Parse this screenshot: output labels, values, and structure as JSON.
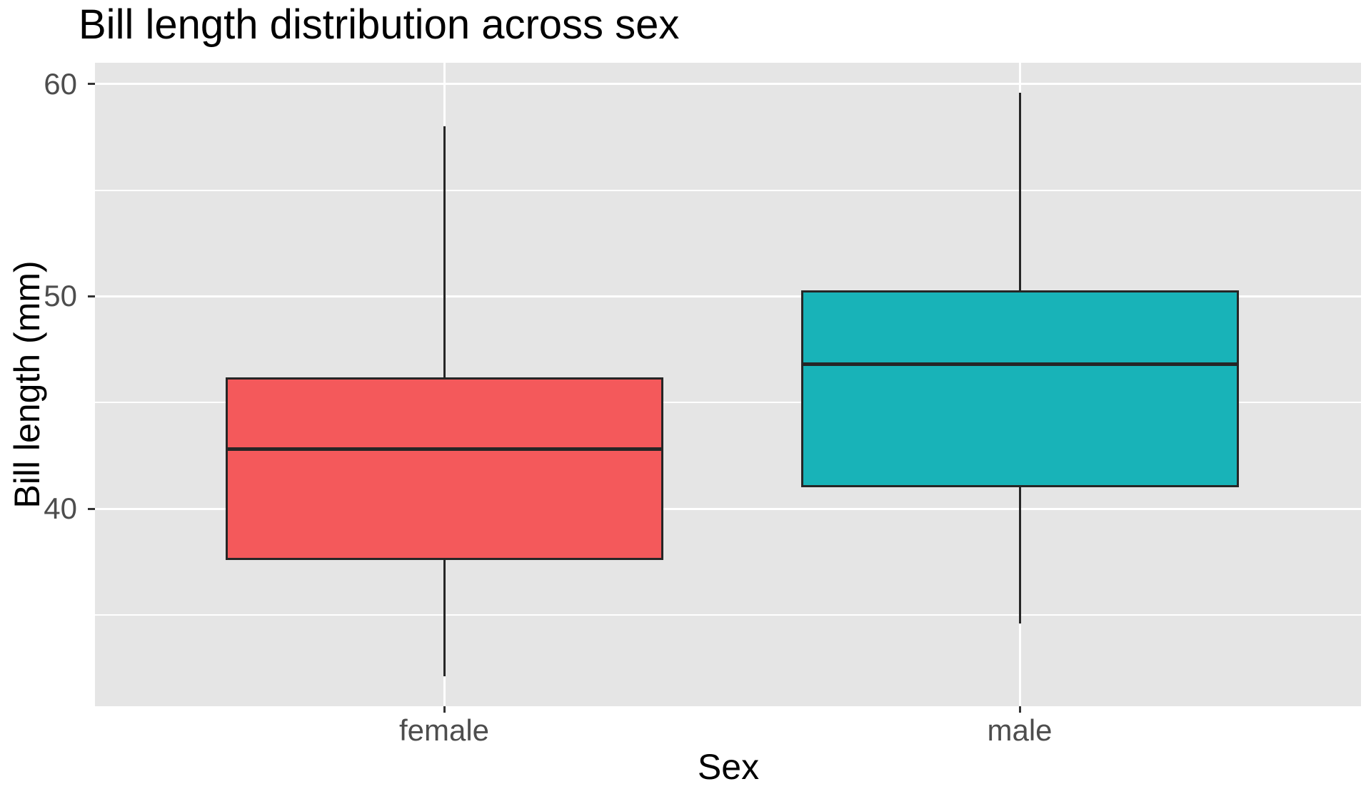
{
  "title": "Bill length distribution across sex",
  "chart_data": {
    "type": "boxplot",
    "title": "Bill length distribution across sex",
    "xlabel": "Sex",
    "ylabel": "Bill length (mm)",
    "categories": [
      "female",
      "male"
    ],
    "series": [
      {
        "name": "female",
        "whisker_low": 32.1,
        "q1": 37.6,
        "median": 42.8,
        "q3": 46.2,
        "whisker_high": 58.0
      },
      {
        "name": "male",
        "whisker_low": 34.6,
        "q1": 41.0,
        "median": 46.8,
        "q3": 50.3,
        "whisker_high": 59.6
      }
    ],
    "ylim": [
      30.7,
      61.0
    ],
    "yticks_major": [
      40,
      50,
      60
    ],
    "yticks_minor": [
      35,
      45,
      55
    ],
    "grid": "on",
    "legend": "none",
    "colors": {
      "female_fill": "#F4595B",
      "male_fill": "#18B3B8",
      "box_border": "#262626",
      "panel_background": "#E5E5E5",
      "gridline": "#FFFFFF",
      "tick_label": "#4D4D4D",
      "axis_title": "#000000",
      "title": "#000000"
    }
  }
}
